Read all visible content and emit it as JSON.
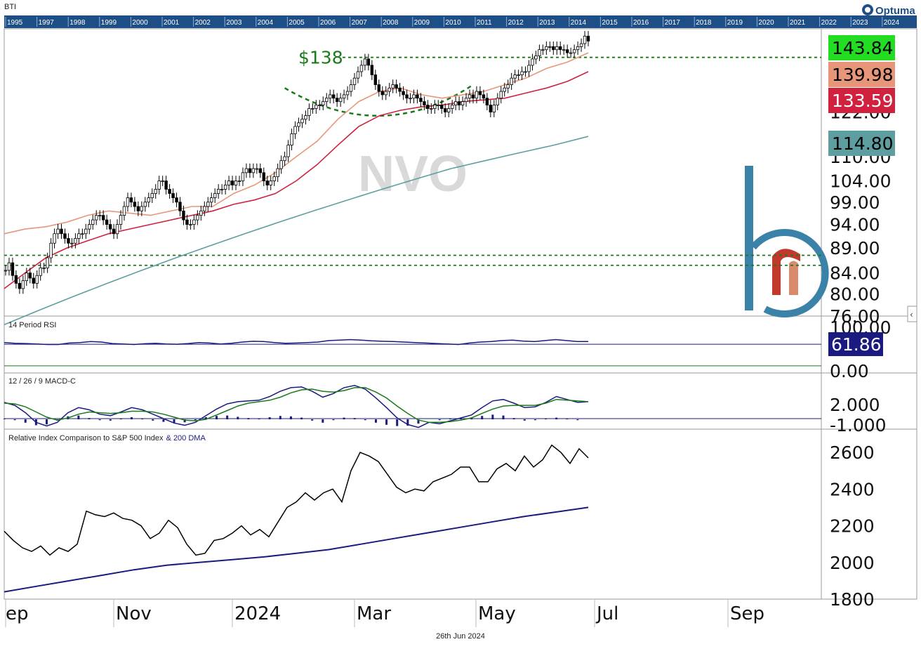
{
  "header": {
    "ticker": "BTI",
    "brand": "Optuma",
    "timeline_years": [
      "1995",
      "1997",
      "1998",
      "1999",
      "2000",
      "2001",
      "2002",
      "2003",
      "2004",
      "2005",
      "2006",
      "2007",
      "2008",
      "2009",
      "2010",
      "2011",
      "2012",
      "2013",
      "2014",
      "2015",
      "2016",
      "2017",
      "2018",
      "2019",
      "2020",
      "2021",
      "2022",
      "2023",
      "2024"
    ]
  },
  "footer": {
    "date": "26th Jun 2024"
  },
  "colors": {
    "header_bar": "#1d4f86",
    "ma_fast": "#e8967a",
    "ma_mid": "#d0213f",
    "ma_slow": "#5f9ea0",
    "annotation": "#1a7a1a",
    "navy": "#1a1a80",
    "watermark": "#d9d9d9",
    "logo_blue": "#3b82a8",
    "logo_red": "#c0392b",
    "logo_salmon": "#d98b6e"
  },
  "chart_data": [
    {
      "type": "candlestick",
      "title": "NVO",
      "x_tick_labels": [
        "ep",
        "Nov",
        "2024",
        "Mar",
        "May",
        "Jul",
        "Sep"
      ],
      "y_tick_labels": [
        "122.00",
        "110.00",
        "104.00",
        "99.00",
        "94.00",
        "89.00",
        "84.00",
        "80.00",
        "76.00"
      ],
      "ylim": [
        76,
        148
      ],
      "scale": "log",
      "close_series": [
        84.5,
        86,
        83.5,
        82,
        81,
        82.5,
        84,
        83,
        82,
        83.5,
        85,
        85,
        87,
        90,
        92,
        93,
        92,
        91,
        90,
        90,
        91,
        92,
        92,
        93,
        94,
        95,
        96,
        96,
        95,
        94,
        93,
        92,
        94,
        96,
        98,
        100,
        99,
        98,
        97,
        98,
        99,
        100,
        101,
        102,
        104,
        104,
        102,
        101,
        100,
        99,
        97,
        95,
        94,
        94,
        95,
        96,
        97,
        98,
        99,
        100,
        101,
        102,
        102,
        103,
        104,
        103,
        104,
        104,
        106,
        107,
        106,
        107,
        107,
        106,
        104,
        103,
        104,
        105,
        107,
        109,
        110,
        113,
        116,
        118,
        119,
        120,
        121,
        123,
        123,
        124,
        124,
        125,
        126,
        127,
        126,
        125,
        126,
        127,
        128,
        130,
        132,
        134,
        136,
        138,
        136,
        133,
        130,
        128,
        127,
        128,
        129,
        130,
        129,
        128,
        127,
        126,
        126,
        127,
        126,
        125,
        124,
        123,
        123,
        124,
        124,
        123,
        122,
        123,
        124,
        125,
        124,
        125,
        126,
        127,
        126,
        128,
        127,
        126,
        124,
        122,
        124,
        126,
        128,
        129,
        130,
        132,
        133,
        133,
        134,
        134,
        136,
        138,
        139,
        141,
        141,
        142,
        142,
        141,
        142,
        141,
        141,
        140,
        140,
        141,
        142,
        143,
        145.5,
        143.84
      ],
      "series": [
        {
          "name": "",
          "color_key": "ma_fast",
          "last_value": 139.98,
          "values": [
            92,
            93,
            93.5,
            94.5,
            96,
            97,
            96.5,
            96,
            97,
            98,
            98,
            101,
            103,
            106,
            110,
            114,
            120,
            125,
            128,
            129,
            127,
            126,
            127,
            128,
            130,
            132,
            135,
            137,
            140
          ]
        },
        {
          "name": "",
          "color_key": "ma_mid",
          "last_value": 133.59,
          "values": [
            81,
            84,
            87,
            89,
            90.5,
            92,
            93,
            94,
            95,
            96,
            97,
            98.5,
            99.5,
            101,
            104,
            108,
            113,
            118,
            121,
            122.5,
            123.5,
            124,
            125,
            125.5,
            126,
            127.5,
            129,
            131,
            134
          ]
        },
        {
          "name": "",
          "color_key": "ma_slow",
          "last_value": 114.8,
          "values": [
            74.5,
            77,
            79.5,
            82,
            84.5,
            87,
            89.5,
            92,
            94.5,
            97,
            99.5,
            102,
            104.5,
            107,
            109,
            111,
            113,
            115.3
          ]
        }
      ],
      "value_boxes": [
        {
          "value": "143.84",
          "bg": "#22dd22",
          "fg": "#000000"
        },
        {
          "value": "139.98",
          "bg": "#e8967a",
          "fg": "#000000"
        },
        {
          "value": "133.59",
          "bg": "#d0213f",
          "fg": "#ffffff"
        },
        {
          "value": "114.80",
          "bg": "#5f9ea0",
          "fg": "#000000"
        }
      ],
      "horizontal_lines": [
        138.5,
        87.5,
        85.5
      ],
      "annotations": [
        {
          "text": "$138"
        }
      ]
    },
    {
      "type": "line",
      "title": "14 Period RSI",
      "y_tick_labels": [
        "100.00",
        "0.00"
      ],
      "ylim": [
        0,
        100
      ],
      "last_value": 61.86,
      "levels": [
        70,
        30
      ],
      "values": [
        58,
        55,
        54,
        52,
        50,
        50,
        56,
        58,
        62,
        60,
        54,
        52,
        50,
        53,
        55,
        52,
        51,
        54,
        58,
        56,
        52,
        55,
        60,
        63,
        62,
        58,
        55,
        56,
        58,
        60,
        66,
        68,
        70,
        68,
        65,
        63,
        62,
        60,
        58,
        56,
        54,
        52,
        50,
        56,
        60,
        62,
        66,
        68,
        64,
        62,
        66,
        70,
        66,
        62,
        61.86
      ]
    },
    {
      "type": "line",
      "title": "12 / 26 / 9 MACD-C",
      "y_tick_labels": [
        "2.000",
        "-1.000"
      ],
      "ylim": [
        -1.5,
        5
      ],
      "series": [
        {
          "name": "",
          "color_key": "navy",
          "values": [
            2.2,
            1.8,
            0.8,
            -0.5,
            -1.0,
            -0.5,
            0.8,
            1.5,
            1.2,
            0.6,
            0.4,
            0.9,
            1.5,
            1.2,
            0.6,
            0,
            -0.6,
            -0.9,
            -0.5,
            0.4,
            1.3,
            2.0,
            2.3,
            2.4,
            2.5,
            3.0,
            3.7,
            4.2,
            4.3,
            3.7,
            2.9,
            3.4,
            4.2,
            4.5,
            4.0,
            2.8,
            1.5,
            0.1,
            -0.8,
            -1.2,
            -0.5,
            -0.7,
            -0.3,
            0.1,
            0.5,
            1.5,
            2.4,
            2.6,
            2.1,
            1.5,
            1.6,
            2.2,
            3.0,
            2.6,
            2.2,
            2.3
          ]
        },
        {
          "name": "",
          "color_key": "annotation",
          "values": [
            2.1,
            2.0,
            1.6,
            0.9,
            0.2,
            -0.2,
            0.1,
            0.6,
            0.9,
            0.8,
            0.7,
            0.8,
            1.0,
            1.0,
            0.9,
            0.6,
            0.2,
            -0.2,
            -0.3,
            -0.1,
            0.5,
            1.1,
            1.7,
            2.1,
            2.3,
            2.5,
            2.9,
            3.5,
            3.9,
            4.0,
            3.7,
            3.6,
            3.8,
            4.2,
            4.2,
            3.6,
            2.8,
            1.7,
            0.7,
            -0.2,
            -0.5,
            -0.5,
            -0.4,
            -0.2,
            0.1,
            0.7,
            1.3,
            1.7,
            1.8,
            1.8,
            1.8,
            2.1,
            2.6,
            2.5,
            2.4,
            2.3
          ]
        }
      ]
    },
    {
      "type": "line",
      "title": "Relative Index Comparison to S&P 500 Index",
      "title_suffix": "& 200 DMA",
      "y_tick_labels": [
        "2600",
        "2400",
        "2200",
        "2000",
        "1800"
      ],
      "ylim": [
        1800,
        2700
      ],
      "series": [
        {
          "name": "",
          "color_key": "black",
          "values": [
            2170,
            2120,
            2080,
            2060,
            2090,
            2040,
            2080,
            2060,
            2100,
            2280,
            2260,
            2250,
            2270,
            2240,
            2230,
            2200,
            2130,
            2160,
            2230,
            2190,
            2100,
            2040,
            2050,
            2120,
            2130,
            2160,
            2200,
            2150,
            2180,
            2140,
            2220,
            2300,
            2330,
            2380,
            2340,
            2380,
            2400,
            2330,
            2500,
            2600,
            2580,
            2550,
            2480,
            2410,
            2380,
            2400,
            2390,
            2440,
            2460,
            2480,
            2520,
            2520,
            2440,
            2440,
            2510,
            2540,
            2500,
            2580,
            2520,
            2560,
            2640,
            2600,
            2540,
            2620,
            2570
          ]
        },
        {
          "name": "200 DMA",
          "color_key": "navy",
          "values": [
            1840,
            1870,
            1900,
            1930,
            1960,
            1985,
            2000,
            2015,
            2030,
            2050,
            2070,
            2100,
            2130,
            2160,
            2190,
            2220,
            2250,
            2275,
            2300
          ]
        }
      ]
    }
  ]
}
